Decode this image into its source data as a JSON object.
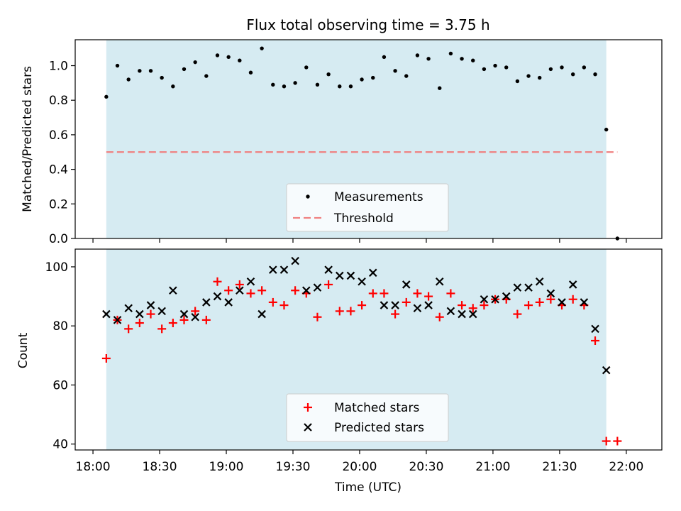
{
  "chart_data": [
    {
      "type": "scatter",
      "title": "Flux total observing time = 3.75 h",
      "ylabel": "Matched/Predicted stars",
      "xlabel": "",
      "ylim": [
        0,
        1.15
      ],
      "yticks": [
        0.0,
        0.2,
        0.4,
        0.6,
        0.8,
        1.0
      ],
      "ytick_labels": [
        "0.0",
        "0.2",
        "0.4",
        "0.6",
        "0.8",
        "1.0"
      ],
      "xlim_minutes": [
        1072,
        1336
      ],
      "observing_window": {
        "start": "18:06",
        "end": "21:51",
        "color": "#add8e6"
      },
      "threshold": {
        "name": "Threshold",
        "value": 0.5,
        "x_start": "18:06",
        "x_end": "21:56",
        "color": "#f08080"
      },
      "legend": {
        "placement": "lower-center",
        "entries": [
          "Measurements",
          "Threshold"
        ]
      },
      "series": [
        {
          "name": "Measurements",
          "color": "#000000",
          "x": [
            "18:06",
            "18:11",
            "18:16",
            "18:21",
            "18:26",
            "18:31",
            "18:36",
            "18:41",
            "18:46",
            "18:51",
            "18:56",
            "19:01",
            "19:06",
            "19:11",
            "19:16",
            "19:21",
            "19:26",
            "19:31",
            "19:36",
            "19:41",
            "19:46",
            "19:51",
            "19:56",
            "20:01",
            "20:06",
            "20:11",
            "20:16",
            "20:21",
            "20:26",
            "20:31",
            "20:36",
            "20:41",
            "20:46",
            "20:51",
            "20:56",
            "21:01",
            "21:06",
            "21:11",
            "21:16",
            "21:21",
            "21:26",
            "21:31",
            "21:36",
            "21:41",
            "21:46",
            "21:51",
            "21:56"
          ],
          "y": [
            0.82,
            1.0,
            0.92,
            0.97,
            0.97,
            0.93,
            0.88,
            0.98,
            1.02,
            0.94,
            1.06,
            1.05,
            1.03,
            0.96,
            1.1,
            0.89,
            0.88,
            0.9,
            0.99,
            0.89,
            0.95,
            0.88,
            0.88,
            0.92,
            0.93,
            1.05,
            0.97,
            0.94,
            1.06,
            1.04,
            0.87,
            1.07,
            1.04,
            1.03,
            0.98,
            1.0,
            0.99,
            0.91,
            0.94,
            0.93,
            0.98,
            0.99,
            0.95,
            0.99,
            0.95,
            0.63,
            0.0
          ]
        }
      ]
    },
    {
      "type": "scatter",
      "title": "",
      "ylabel": "Count",
      "xlabel": "Time (UTC)",
      "ylim": [
        38,
        106
      ],
      "yticks": [
        40,
        60,
        80,
        100
      ],
      "ytick_labels": [
        "40",
        "60",
        "80",
        "100"
      ],
      "xlim_minutes": [
        1072,
        1336
      ],
      "xticks": [
        "18:00",
        "18:30",
        "19:00",
        "19:30",
        "20:00",
        "20:30",
        "21:00",
        "21:30",
        "22:00"
      ],
      "xtick_minutes": [
        1080,
        1110,
        1140,
        1170,
        1200,
        1230,
        1260,
        1290,
        1320
      ],
      "observing_window": {
        "start": "18:06",
        "end": "21:51",
        "color": "#add8e6"
      },
      "legend": {
        "placement": "lower-center",
        "entries": [
          "Matched stars",
          "Predicted stars"
        ]
      },
      "series": [
        {
          "name": "Matched stars",
          "marker": "plus",
          "color": "#ff0000",
          "x": [
            "18:06",
            "18:11",
            "18:16",
            "18:21",
            "18:26",
            "18:31",
            "18:36",
            "18:41",
            "18:46",
            "18:51",
            "18:56",
            "19:01",
            "19:06",
            "19:11",
            "19:16",
            "19:21",
            "19:26",
            "19:31",
            "19:36",
            "19:41",
            "19:46",
            "19:51",
            "19:56",
            "20:01",
            "20:06",
            "20:11",
            "20:16",
            "20:21",
            "20:26",
            "20:31",
            "20:36",
            "20:41",
            "20:46",
            "20:51",
            "20:56",
            "21:01",
            "21:06",
            "21:11",
            "21:16",
            "21:21",
            "21:26",
            "21:31",
            "21:36",
            "21:41",
            "21:46",
            "21:51",
            "21:56"
          ],
          "y": [
            69,
            82,
            79,
            81,
            84,
            79,
            81,
            82,
            85,
            82,
            95,
            92,
            94,
            91,
            92,
            88,
            87,
            92,
            91,
            83,
            94,
            85,
            85,
            87,
            91,
            91,
            84,
            88,
            91,
            90,
            83,
            91,
            87,
            86,
            87,
            89,
            89,
            84,
            87,
            88,
            89,
            87,
            89,
            87,
            75,
            41,
            41
          ]
        },
        {
          "name": "Predicted stars",
          "marker": "x",
          "color": "#000000",
          "x": [
            "18:06",
            "18:11",
            "18:16",
            "18:21",
            "18:26",
            "18:31",
            "18:36",
            "18:41",
            "18:46",
            "18:51",
            "18:56",
            "19:01",
            "19:06",
            "19:11",
            "19:16",
            "19:21",
            "19:26",
            "19:31",
            "19:36",
            "19:41",
            "19:46",
            "19:51",
            "19:56",
            "20:01",
            "20:06",
            "20:11",
            "20:16",
            "20:21",
            "20:26",
            "20:31",
            "20:36",
            "20:41",
            "20:46",
            "20:51",
            "20:56",
            "21:01",
            "21:06",
            "21:11",
            "21:16",
            "21:21",
            "21:26",
            "21:31",
            "21:36",
            "21:41",
            "21:46",
            "21:51"
          ],
          "y": [
            84,
            82,
            86,
            84,
            87,
            85,
            92,
            84,
            83,
            88,
            90,
            88,
            92,
            95,
            84,
            99,
            99,
            102,
            92,
            93,
            99,
            97,
            97,
            95,
            98,
            87,
            87,
            94,
            86,
            87,
            95,
            85,
            84,
            84,
            89,
            89,
            90,
            93,
            93,
            95,
            91,
            88,
            94,
            88,
            79,
            65
          ]
        }
      ]
    }
  ]
}
